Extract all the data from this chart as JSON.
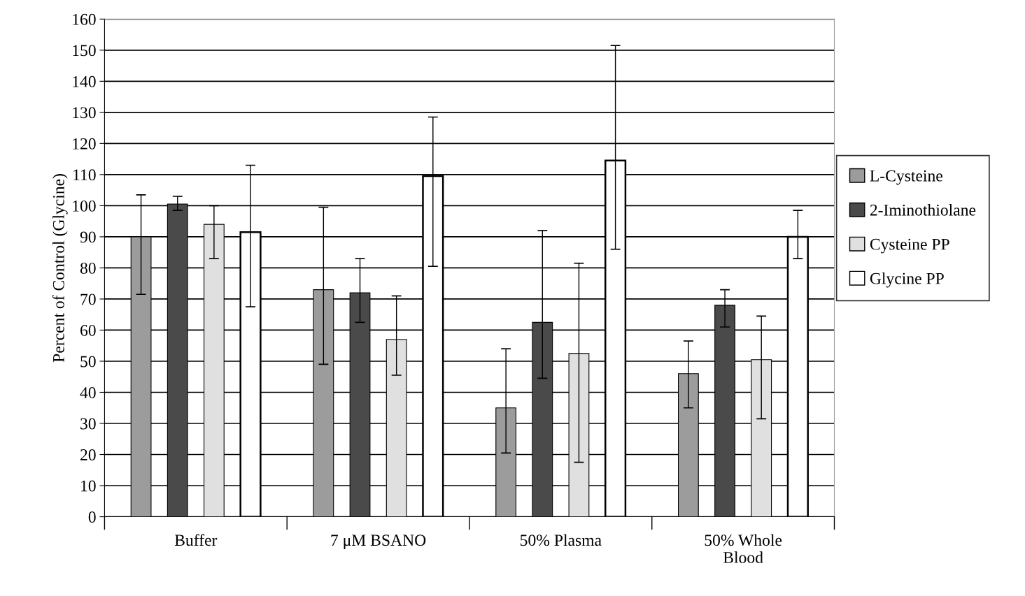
{
  "chart_data": {
    "type": "bar",
    "ylabel": "Percent of Control (Glycine)",
    "categories": [
      "Buffer",
      "7 μM BSANO",
      "50% Plasma",
      "50% Whole\nBlood"
    ],
    "series": [
      {
        "name": "L-Cysteine",
        "color": "#9c9c9c",
        "values": [
          90,
          73,
          35,
          46
        ],
        "errors": [
          [
            71.5,
            103.5
          ],
          [
            49,
            99.5
          ],
          [
            20.5,
            54
          ],
          [
            35,
            56.5
          ]
        ]
      },
      {
        "name": "2-Iminothiolane",
        "color": "#4a4a4a",
        "values": [
          100.5,
          72,
          62.5,
          68
        ],
        "errors": [
          [
            98.5,
            103
          ],
          [
            62.5,
            83
          ],
          [
            44.5,
            92
          ],
          [
            61,
            73
          ]
        ]
      },
      {
        "name": "Cysteine PP",
        "color": "#e0e0e0",
        "values": [
          94,
          57,
          52.5,
          50.5
        ],
        "errors": [
          [
            83,
            100
          ],
          [
            45.5,
            71
          ],
          [
            17.5,
            81.5
          ],
          [
            31.5,
            64.5
          ]
        ]
      },
      {
        "name": "Glycine PP",
        "color": "#ffffff",
        "values": [
          91.5,
          109.5,
          114.5,
          90
        ],
        "errors": [
          [
            67.5,
            113
          ],
          [
            80.5,
            128.5
          ],
          [
            86,
            151.5
          ],
          [
            83,
            98.5
          ]
        ]
      }
    ],
    "ylim": [
      0,
      160
    ],
    "yticks": [
      0,
      10,
      20,
      30,
      40,
      50,
      60,
      70,
      80,
      90,
      100,
      110,
      120,
      130,
      140,
      150,
      160
    ],
    "grid": "y",
    "legend": "right"
  }
}
